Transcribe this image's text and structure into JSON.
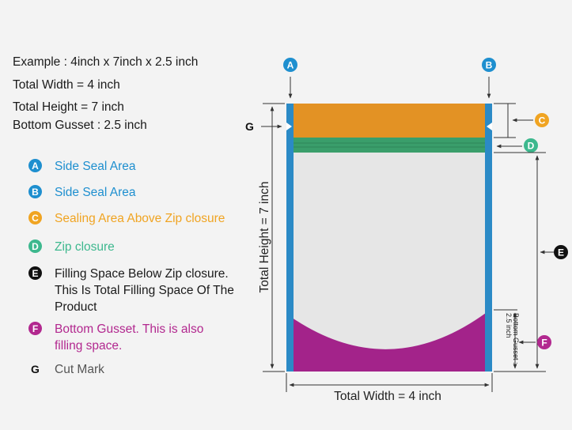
{
  "spec": {
    "example": "Example : 4inch x 7inch x 2.5 inch",
    "width": "Total Width = 4 inch",
    "height": "Total Height = 7 inch",
    "gusset": "Bottom Gusset : 2.5 inch"
  },
  "legend": [
    {
      "key": "A",
      "text": "Side Seal Area",
      "color": "#1e8fcf"
    },
    {
      "key": "B",
      "text": "Side Seal Area",
      "color": "#1e8fcf"
    },
    {
      "key": "C",
      "text": "Sealing Area Above Zip closure",
      "color": "#f0a422"
    },
    {
      "key": "D",
      "text": "Zip closure",
      "color": "#3db88e"
    },
    {
      "key": "E",
      "text": "Filling Space Below Zip closure. This Is Total Filling Space Of The Product",
      "color": "#111111"
    },
    {
      "key": "F",
      "text": "Bottom Gusset. This is also filling space.",
      "color": "#b2288f"
    },
    {
      "key": "G",
      "text": "Cut Mark",
      "color": "#555555"
    }
  ],
  "diagram": {
    "label_a": "A",
    "label_b": "B",
    "label_c": "C",
    "label_d": "D",
    "label_e": "E",
    "label_f": "F",
    "label_g": "G",
    "total_height": "Total Height = 7 inch",
    "total_width": "Total Width = 4 inch",
    "gusset_label_1": "Bottom Gusset :",
    "gusset_label_2": "2.5 inch",
    "colors": {
      "side_seal": "#2b8ac6",
      "top_seal": "#e39224",
      "zip": "#3a9e6b",
      "filling": "#e6e6e6",
      "gusset": "#a3238a",
      "badge_blue": "#1e8fcf",
      "badge_orange": "#f0a422",
      "badge_green": "#3db88e",
      "badge_black": "#111111",
      "badge_magenta": "#b2288f"
    }
  }
}
